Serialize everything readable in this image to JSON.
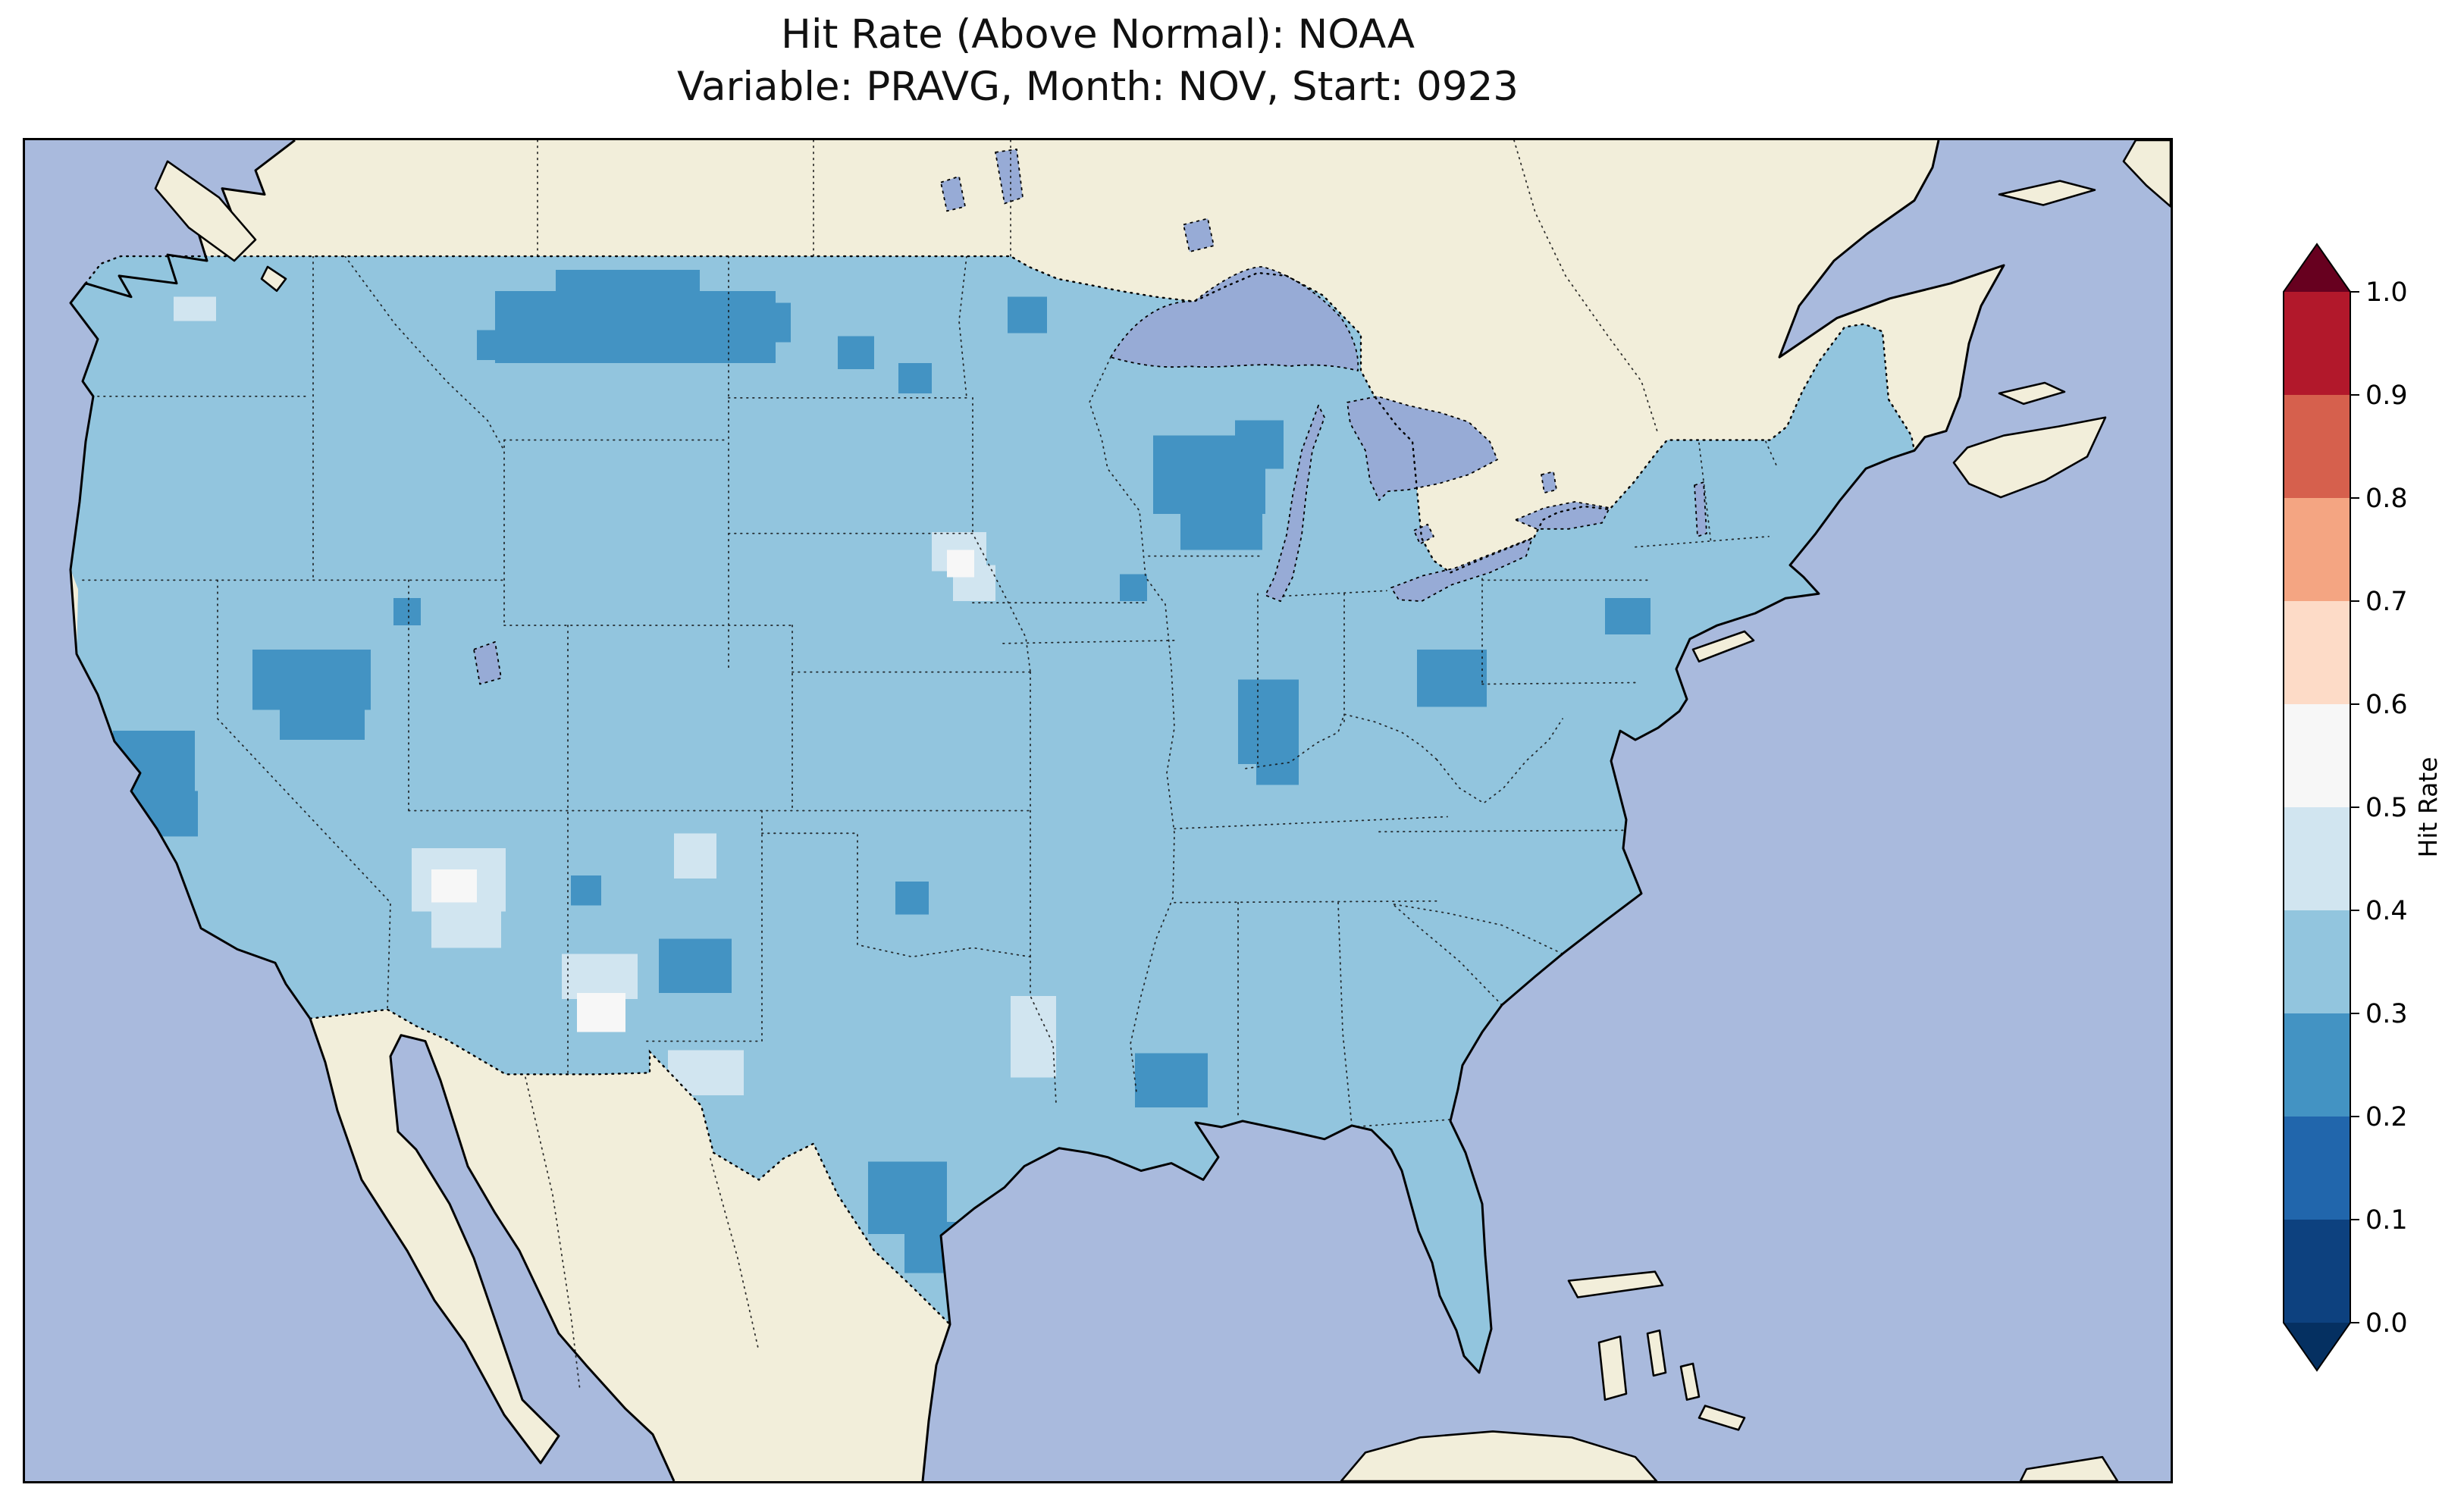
{
  "figure": {
    "title_line1": "Hit Rate (Above Normal): NOAA",
    "title_line2": "Variable: PRAVG, Month: NOV, Start: 0923"
  },
  "colorbar": {
    "label": "Hit Rate",
    "tick_labels_top_to_bottom": [
      "1.0",
      "0.9",
      "0.8",
      "0.7",
      "0.6",
      "0.5",
      "0.4",
      "0.3",
      "0.2",
      "0.1",
      "0.0"
    ],
    "segments_top_to_bottom": [
      "#b2182b",
      "#d6604d",
      "#f4a582",
      "#fddbc7",
      "#f7f7f7",
      "#d1e5f0",
      "#92c5de",
      "#4393c3",
      "#2166ac",
      "#0d417f"
    ],
    "over_color": "#67001f",
    "under_color": "#053061",
    "outline_color": "#000000"
  },
  "map": {
    "ocean_color": "#a9badd",
    "land_color": "#f2eeda",
    "lake_color": "#97abd6",
    "us_base_color": "#92c5de",
    "coastline_color": "#000000",
    "national_border_style": "dotted",
    "state_border_style": "dotted"
  },
  "chart_data": {
    "type": "heatmap",
    "title": "Hit Rate (Above Normal): NOAA",
    "subtitle": "Variable: PRAVG, Month: NOV, Start: 0923",
    "region": "Contiguous United States",
    "value_label": "Hit Rate",
    "value_range": [
      0.0,
      1.0
    ],
    "bin_width": 0.1,
    "colormap": "Blue-to-red diverging (RdBu reversed), 10 discrete 0.1 bins with over/under arrow extensions",
    "legend_position": "right vertical colorbar",
    "bins": {
      "0.2-0.3": "#4393c3",
      "0.3-0.4": "#92c5de",
      "0.4-0.5": "#d1e5f0",
      "0.5-0.6": "#f7f7f7"
    },
    "base_bin": "0.3-0.4",
    "base_note": "Most of the contiguous U.S. grid cells fall in the 0.3-0.4 hit-rate bin (light blue); scattered 0.2-0.3 (darker blue) and 0.4-0.6 (pale/white) pockets",
    "patches": [
      {
        "name": "montana",
        "bin": "0.2-0.3",
        "rects": [
          [
            310,
            100,
            185,
            48
          ],
          [
            350,
            86,
            95,
            22
          ],
          [
            465,
            108,
            40,
            26
          ],
          [
            298,
            126,
            64,
            20
          ]
        ]
      },
      {
        "name": "north-dakota",
        "bin": "0.2-0.3",
        "rects": [
          [
            536,
            130,
            24,
            22
          ]
        ]
      },
      {
        "name": "nd-mn-border",
        "bin": "0.2-0.3",
        "rects": [
          [
            648,
            104,
            26,
            24
          ]
        ]
      },
      {
        "name": "south-dakota",
        "bin": "0.2-0.3",
        "rects": [
          [
            576,
            148,
            22,
            20
          ]
        ]
      },
      {
        "name": "wisconsin-michigan",
        "bin": "0.2-0.3",
        "rects": [
          [
            744,
            196,
            74,
            52
          ],
          [
            762,
            244,
            54,
            28
          ],
          [
            798,
            186,
            32,
            32
          ]
        ]
      },
      {
        "name": "illinois-small",
        "bin": "0.2-0.3",
        "rects": [
          [
            722,
            288,
            18,
            18
          ]
        ]
      },
      {
        "name": "ohio",
        "bin": "0.2-0.3",
        "rects": [
          [
            918,
            338,
            46,
            38
          ]
        ]
      },
      {
        "name": "indiana-kentucky",
        "bin": "0.2-0.3",
        "rects": [
          [
            800,
            358,
            40,
            56
          ],
          [
            812,
            406,
            28,
            22
          ]
        ]
      },
      {
        "name": "pennsylvania",
        "bin": "0.2-0.3",
        "rects": [
          [
            1042,
            304,
            30,
            24
          ]
        ]
      },
      {
        "name": "nevada-utah",
        "bin": "0.2-0.3",
        "rects": [
          [
            150,
            338,
            78,
            40
          ],
          [
            168,
            372,
            56,
            26
          ]
        ]
      },
      {
        "name": "idaho-nevada-small",
        "bin": "0.2-0.3",
        "rects": [
          [
            243,
            304,
            18,
            18
          ]
        ]
      },
      {
        "name": "california-coast",
        "bin": "0.2-0.3",
        "rects": [
          [
            58,
            392,
            54,
            46
          ],
          [
            72,
            432,
            42,
            30
          ]
        ]
      },
      {
        "name": "southern-utah-small",
        "bin": "0.2-0.3",
        "rects": [
          [
            360,
            488,
            20,
            20
          ]
        ]
      },
      {
        "name": "new-mexico",
        "bin": "0.2-0.3",
        "rects": [
          [
            418,
            530,
            48,
            36
          ]
        ]
      },
      {
        "name": "kansas-oklahoma-small",
        "bin": "0.2-0.3",
        "rects": [
          [
            574,
            492,
            22,
            22
          ]
        ]
      },
      {
        "name": "texas-coast",
        "bin": "0.2-0.3",
        "rects": [
          [
            556,
            678,
            52,
            48
          ],
          [
            580,
            718,
            36,
            34
          ]
        ]
      },
      {
        "name": "louisiana",
        "bin": "0.2-0.3",
        "rects": [
          [
            732,
            606,
            48,
            36
          ]
        ]
      },
      {
        "name": "washington-light",
        "bin": "0.4-0.5",
        "rects": [
          [
            98,
            104,
            28,
            16
          ]
        ]
      },
      {
        "name": "nebraska-missouri-light",
        "bin": "0.4-0.5",
        "rects": [
          [
            598,
            260,
            36,
            26
          ],
          [
            612,
            282,
            28,
            24
          ]
        ]
      },
      {
        "name": "colorado-kansas-light",
        "bin": "0.4-0.5",
        "rects": [
          [
            428,
            460,
            28,
            30
          ]
        ]
      },
      {
        "name": "arizona-light",
        "bin": "0.4-0.5",
        "rects": [
          [
            255,
            470,
            62,
            42
          ],
          [
            268,
            506,
            46,
            30
          ]
        ]
      },
      {
        "name": "new-mexico-light",
        "bin": "0.4-0.5",
        "rects": [
          [
            354,
            540,
            50,
            30
          ]
        ]
      },
      {
        "name": "west-texas-light",
        "bin": "0.4-0.5",
        "rects": [
          [
            424,
            604,
            50,
            30
          ]
        ]
      },
      {
        "name": "central-texas-light",
        "bin": "0.4-0.5",
        "rects": [
          [
            650,
            568,
            30,
            54
          ]
        ]
      },
      {
        "name": "nebraska-white",
        "bin": "0.5-0.6",
        "rects": [
          [
            608,
            272,
            18,
            18
          ]
        ]
      },
      {
        "name": "arizona-white",
        "bin": "0.5-0.6",
        "rects": [
          [
            268,
            484,
            30,
            22
          ]
        ]
      },
      {
        "name": "new-mexico-white",
        "bin": "0.5-0.6",
        "rects": [
          [
            364,
            566,
            32,
            26
          ]
        ]
      },
      {
        "name": "florida-keys-white",
        "bin": "0.5-0.6",
        "rects": [
          [
            1006,
            798,
            12,
            12
          ],
          [
            1022,
            798,
            12,
            12
          ]
        ]
      }
    ]
  }
}
